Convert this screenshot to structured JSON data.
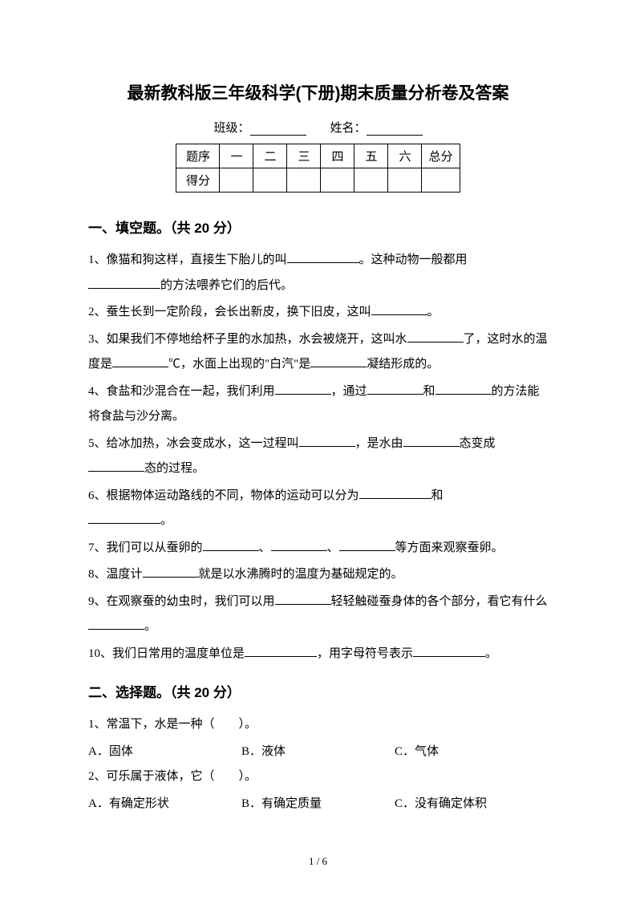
{
  "title": "最新教科版三年级科学(下册)期末质量分析卷及答案",
  "info": {
    "class_label": "班级：",
    "name_label": "姓名："
  },
  "score_table": {
    "row1": [
      "题序",
      "一",
      "二",
      "三",
      "四",
      "五",
      "六",
      "总分"
    ],
    "row2_label": "得分"
  },
  "section1": {
    "heading": "一、填空题。（共 20 分）",
    "q1a": "1、像猫和狗这样，直接生下胎儿的叫",
    "q1b": "。这种动物一般都用",
    "q1c": "的方法喂养它们的后代。",
    "q2a": "2、蚕生长到一定阶段，会长出新皮，换下旧皮，这叫",
    "q2b": "。",
    "q3a": "3、如果我们不停地给杯子里的水加热，水会被烧开，这叫水",
    "q3b": "了，这时水的温度是",
    "q3c": "℃，水面上出现的\"白汽\"是",
    "q3d": "凝结形成的。",
    "q4a": "4、食盐和沙混合在一起，我们利用",
    "q4b": "，通过",
    "q4c": "和",
    "q4d": "的方法能将食盐与沙分离。",
    "q5a": "5、给冰加热，冰会变成水，这一过程叫",
    "q5b": "，是水由",
    "q5c": "态变成",
    "q5d": "态的过程。",
    "q6a": "6、根据物体运动路线的不同，物体的运动可以分为",
    "q6b": "和",
    "q6c": "。",
    "q7a": "7、我们可以从蚕卵的",
    "q7b": "、",
    "q7c": "、",
    "q7d": "等方面来观察蚕卵。",
    "q8a": "8、温度计",
    "q8b": "就是以水沸腾时的温度为基础规定的。",
    "q9a": "9、在观察蚕的幼虫时，我们可以用",
    "q9b": "轻轻触碰蚕身体的各个部分，看它有什么",
    "q9c": "。",
    "q10a": "10、我们日常用的温度单位是",
    "q10b": "，用字母符号表示",
    "q10c": "。"
  },
  "section2": {
    "heading": "二、选择题。（共 20 分）",
    "q1": "1、常温下，水是一种（　　）。",
    "q1_optA": "A．固体",
    "q1_optB": "B．液体",
    "q1_optC": "C．气体",
    "q2": "2、可乐属于液体，它（　　）。",
    "q2_optA": "A．有确定形状",
    "q2_optB": "B．有确定质量",
    "q2_optC": "C．没有确定体积"
  },
  "page_number": "1 / 6"
}
